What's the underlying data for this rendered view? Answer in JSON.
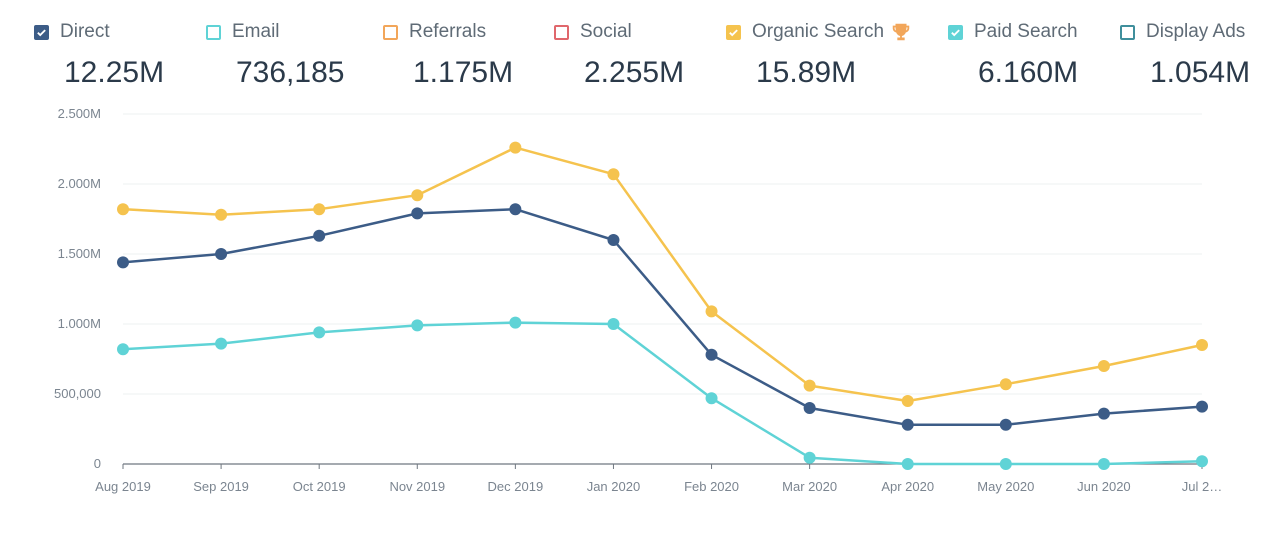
{
  "legend": [
    {
      "name": "Direct",
      "value": "12.25M",
      "color": "#3c5c87",
      "checked": true
    },
    {
      "name": "Email",
      "value": "736,185",
      "color": "#5fd3d6",
      "checked": false
    },
    {
      "name": "Referrals",
      "value": "1.175M",
      "color": "#f2a65a",
      "checked": false
    },
    {
      "name": "Social",
      "value": "2.255M",
      "color": "#e0676c",
      "checked": false
    },
    {
      "name": "Organic Search",
      "value": "15.89M",
      "color": "#f5c34e",
      "checked": true,
      "icon": "trophy-icon"
    },
    {
      "name": "Paid Search",
      "value": "6.160M",
      "color": "#5fd3d6",
      "checked": true
    },
    {
      "name": "Display Ads",
      "value": "1.054M",
      "color": "#3f8f9c",
      "checked": false
    }
  ],
  "chart_data": {
    "type": "line",
    "categories": [
      "Aug 2019",
      "Sep 2019",
      "Oct 2019",
      "Nov 2019",
      "Dec 2019",
      "Jan 2020",
      "Feb 2020",
      "Mar 2020",
      "Apr 2020",
      "May 2020",
      "Jun 2020",
      "Jul 2…"
    ],
    "yticks": [
      "0",
      "500,000",
      "1.000M",
      "1.500M",
      "2.000M",
      "2.500M"
    ],
    "ylim": [
      0,
      2500000
    ],
    "grid": true,
    "series": [
      {
        "name": "Organic Search",
        "color": "#f5c34e",
        "values": [
          1820000,
          1780000,
          1820000,
          1920000,
          2260000,
          2070000,
          1090000,
          560000,
          450000,
          570000,
          700000,
          850000
        ]
      },
      {
        "name": "Direct",
        "color": "#3c5c87",
        "values": [
          1440000,
          1500000,
          1630000,
          1790000,
          1820000,
          1600000,
          780000,
          400000,
          280000,
          280000,
          360000,
          410000
        ]
      },
      {
        "name": "Paid Search",
        "color": "#5fd3d6",
        "values": [
          820000,
          860000,
          940000,
          990000,
          1010000,
          1000000,
          470000,
          45000,
          0,
          0,
          0,
          20000
        ]
      }
    ]
  }
}
